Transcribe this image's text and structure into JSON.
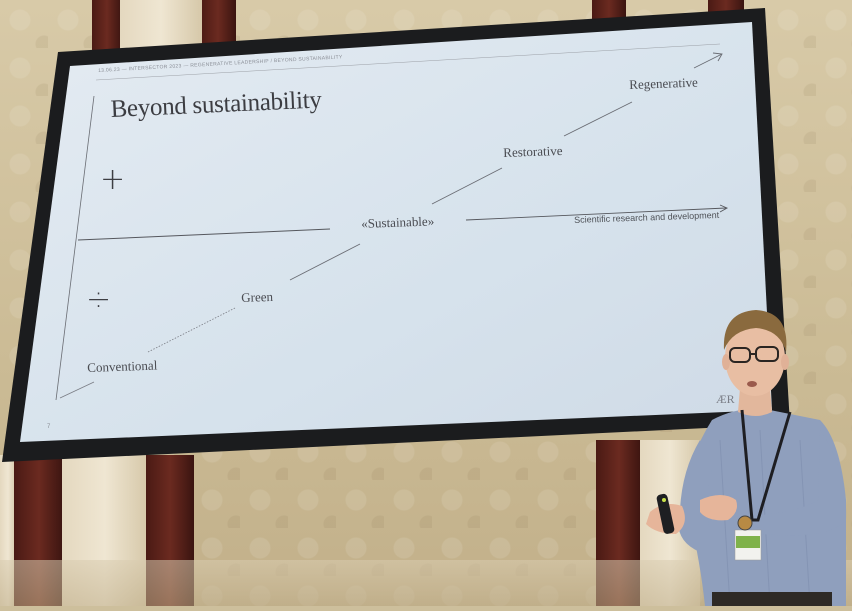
{
  "slide": {
    "header": "13.06.23 — INTERSECTOR 2023 — REGENERATIVE LEADERSHIP / BEYOND SUSTAINABILITY",
    "title": "Beyond sustainability",
    "plus_symbol": "+",
    "divide_symbol": "÷",
    "stages": {
      "conventional": "Conventional",
      "green": "Green",
      "sustainable": "«Sustainable»",
      "restorative": "Restorative",
      "regenerative": "Regenerative"
    },
    "research_label": "Scientific research and development",
    "page_number": "7",
    "logo": "ÆR"
  },
  "colors": {
    "slide_bg": "#d9e4ee",
    "frame": "#1b1c1e",
    "wall": "#cdbf9c",
    "shirt": "#8f9fbd",
    "lanyard_badge": "#7fb24a"
  }
}
